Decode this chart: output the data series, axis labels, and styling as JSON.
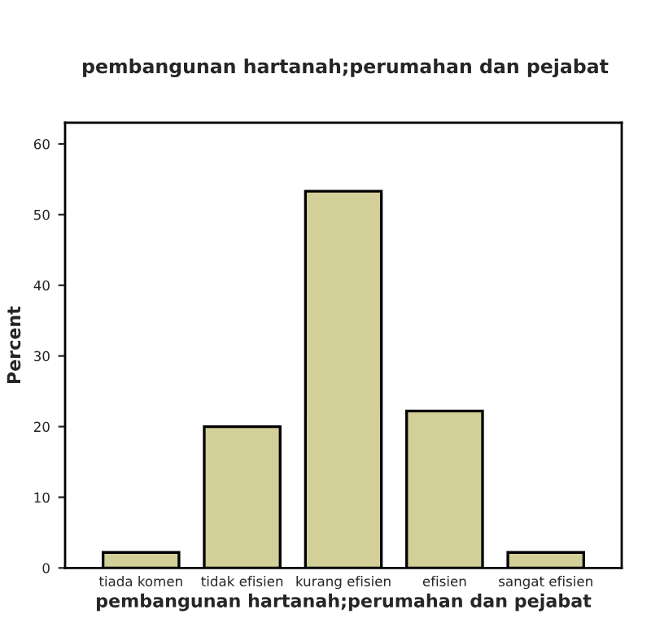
{
  "chart_data": {
    "type": "bar",
    "title": "pembangunan hartanah;perumahan dan pejabat",
    "xlabel": "pembangunan hartanah;perumahan dan pejabat",
    "ylabel": "Percent",
    "categories": [
      "tiada komen",
      "tidak efisien",
      "kurang efisien",
      "efisien",
      "sangat efisien"
    ],
    "values": [
      2.2,
      20.0,
      53.3,
      22.2,
      2.2
    ],
    "color": "#d3cf99",
    "ylim": [
      0,
      63
    ],
    "yticks": [
      0,
      10,
      20,
      30,
      40,
      50,
      60
    ],
    "grid": false
  }
}
